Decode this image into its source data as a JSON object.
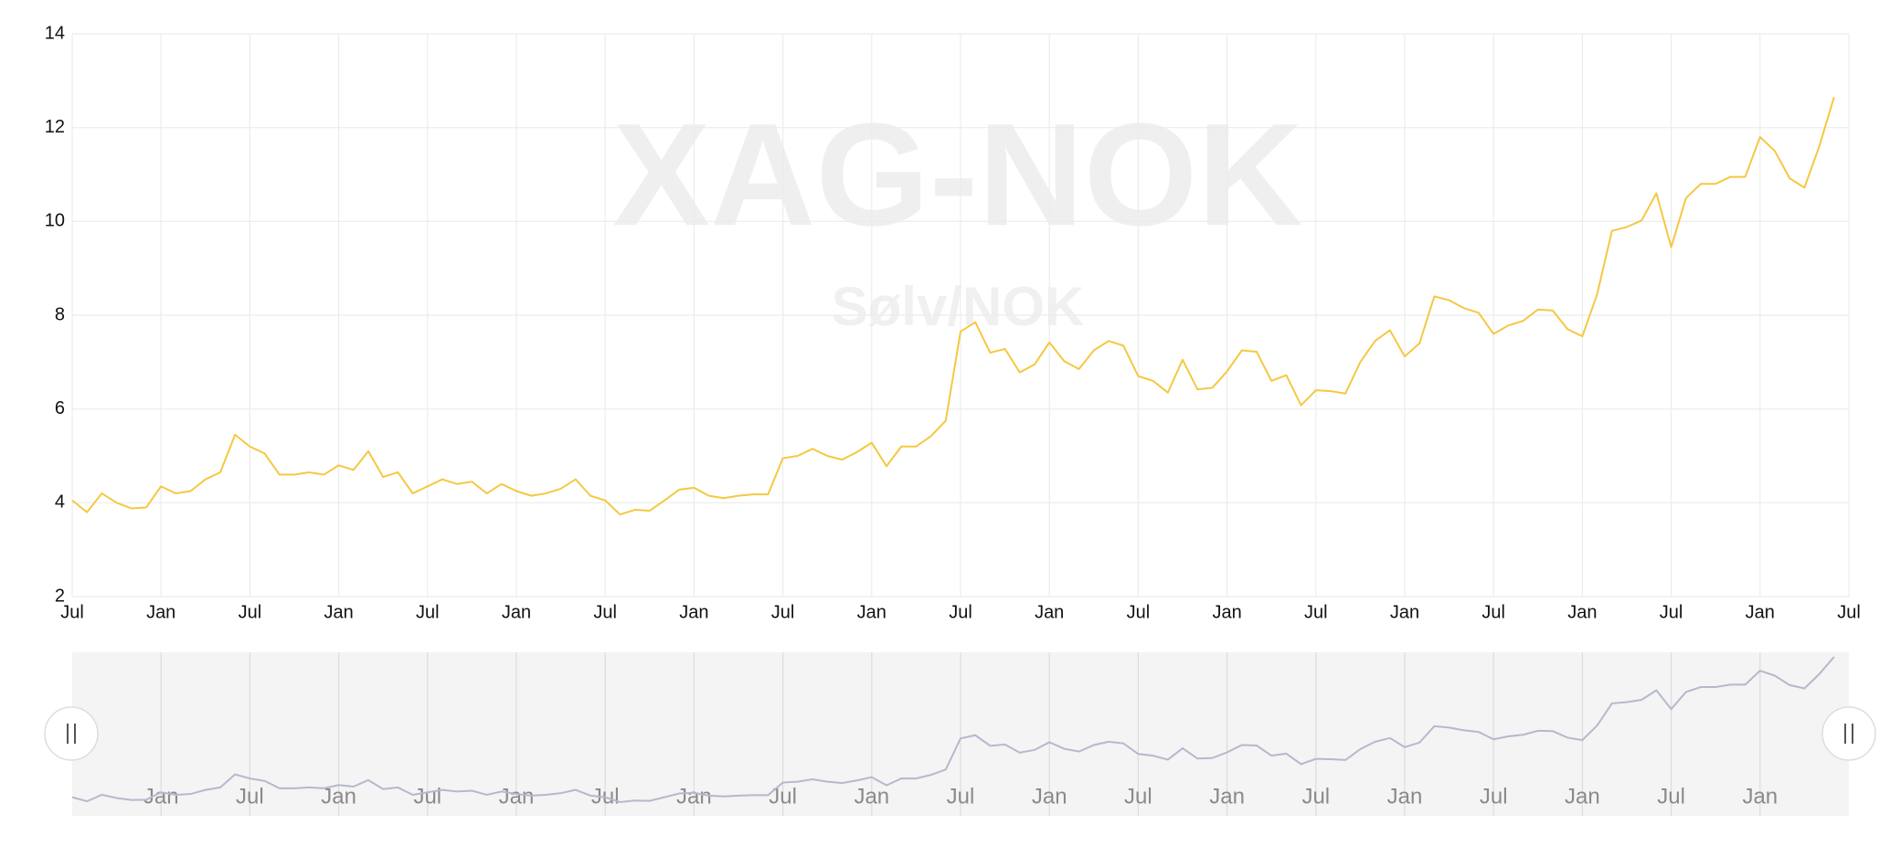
{
  "chart_data": {
    "type": "line",
    "watermark": "XAG-NOK",
    "watermark_subtitle": "Sølv/NOK",
    "categories": [
      "Jul",
      null,
      null,
      null,
      null,
      null,
      "Jan",
      null,
      null,
      null,
      null,
      null,
      "Jul",
      null,
      null,
      null,
      null,
      null,
      "Jan",
      null,
      null,
      null,
      null,
      null,
      "Jul",
      null,
      null,
      null,
      null,
      null,
      "Jan",
      null,
      null,
      null,
      null,
      null,
      "Jul",
      null,
      null,
      null,
      null,
      null,
      "Jan",
      null,
      null,
      null,
      null,
      null,
      "Jul",
      null,
      null,
      null,
      null,
      null,
      "Jan",
      null,
      null,
      null,
      null,
      null,
      "Jul",
      null,
      null,
      null,
      null,
      null,
      "Jan",
      null,
      null,
      null,
      null,
      null,
      "Jul",
      null,
      null,
      null,
      null,
      null,
      "Jan",
      null,
      null,
      null,
      null,
      null,
      "Jul",
      null,
      null,
      null,
      null,
      null,
      "Jan",
      null,
      null,
      null,
      null,
      null,
      "Jul",
      null,
      null,
      null,
      null,
      null,
      "Jan",
      null,
      null,
      null,
      null,
      null,
      "Jul",
      null,
      null,
      null,
      null,
      null,
      "Jan",
      null,
      null,
      null,
      null,
      null,
      "Jul"
    ],
    "series": [
      {
        "color": "#f5c842",
        "values": [
          4.05,
          3.8,
          4.2,
          4.0,
          3.88,
          3.9,
          4.35,
          4.2,
          4.25,
          4.5,
          4.65,
          5.45,
          5.2,
          5.05,
          4.6,
          4.6,
          4.65,
          4.6,
          4.8,
          4.7,
          5.1,
          4.55,
          4.65,
          4.2,
          4.35,
          4.5,
          4.4,
          4.45,
          4.2,
          4.4,
          4.25,
          4.15,
          4.2,
          4.3,
          4.5,
          4.15,
          4.05,
          3.75,
          3.85,
          3.83,
          4.05,
          4.28,
          4.32,
          4.15,
          4.1,
          4.15,
          4.18,
          4.18,
          4.95,
          5.0,
          5.15,
          5.0,
          4.92,
          5.08,
          5.28,
          4.78,
          5.2,
          5.2,
          5.42,
          5.75,
          7.65,
          7.85,
          7.2,
          7.28,
          6.78,
          6.95,
          7.42,
          7.02,
          6.85,
          7.25,
          7.45,
          7.35,
          6.7,
          6.6,
          6.35,
          7.05,
          6.42,
          6.45,
          6.8,
          7.25,
          7.22,
          6.6,
          6.72,
          6.08,
          6.4,
          6.38,
          6.33,
          7.0,
          7.45,
          7.68,
          7.12,
          7.4,
          8.4,
          8.32,
          8.15,
          8.05,
          7.6,
          7.78,
          7.88,
          8.12,
          8.1,
          7.7,
          7.55,
          8.45,
          9.8,
          9.88,
          10.02,
          10.6,
          9.45,
          10.5,
          10.8,
          10.8,
          10.95,
          10.95,
          11.8,
          11.5,
          10.92,
          10.72,
          11.6,
          12.65,
          null
        ]
      }
    ],
    "navigator_color": "#b4b9cc",
    "ylim": [
      2,
      14
    ],
    "yticks": [
      2,
      4,
      6,
      8,
      10,
      12,
      14
    ],
    "grid": true
  }
}
